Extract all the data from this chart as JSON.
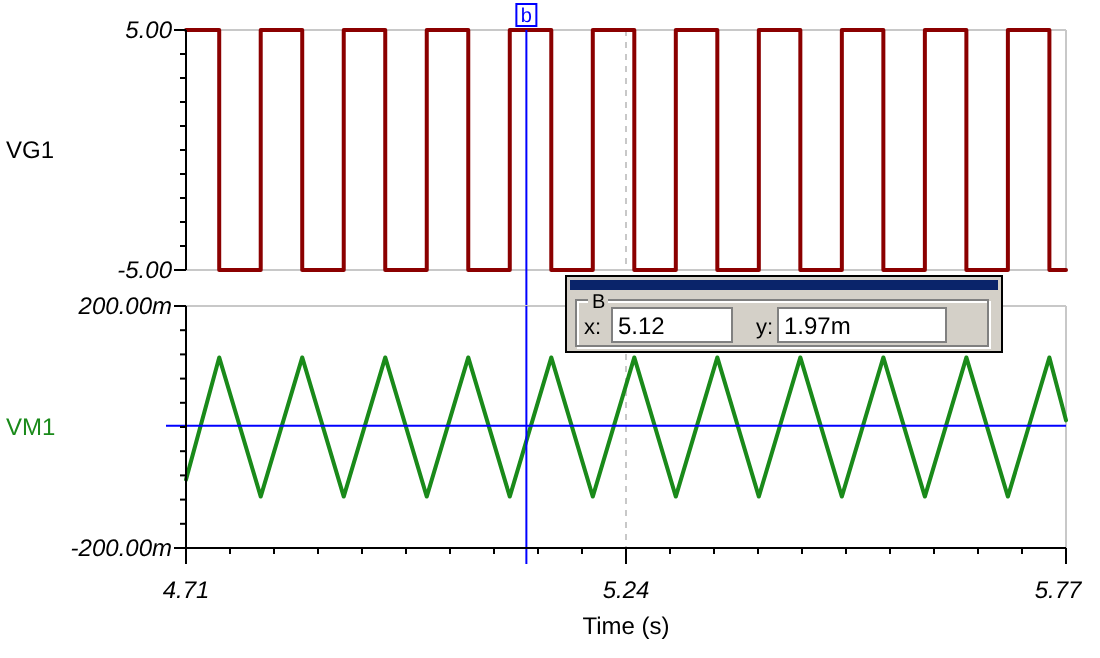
{
  "chart_data": [
    {
      "type": "line",
      "ylabel": "VG1",
      "xlim": [
        4.71,
        5.77
      ],
      "xticks": [
        4.71,
        5.24,
        5.77
      ],
      "ylim": [
        -5,
        5
      ],
      "yticks": [
        {
          "value": -5,
          "label": "-5.00"
        },
        {
          "value": 5,
          "label": "5.00"
        }
      ],
      "tick_labels": "y",
      "grid": true,
      "series": [
        {
          "color": "#8b0000",
          "x": [
            4.71,
            4.75,
            4.75,
            4.8,
            4.8,
            4.85,
            4.85,
            4.9,
            4.9,
            4.95,
            4.95,
            5.0,
            5.0,
            5.05,
            5.05,
            5.1,
            5.1,
            5.15,
            5.15,
            5.2,
            5.2,
            5.25,
            5.25,
            5.3,
            5.3,
            5.35,
            5.35,
            5.4,
            5.4,
            5.45,
            5.45,
            5.5,
            5.5,
            5.55,
            5.55,
            5.6,
            5.6,
            5.65,
            5.65,
            5.7,
            5.7,
            5.75,
            5.75,
            5.77
          ],
          "values": [
            5,
            5,
            -5,
            -5,
            5,
            5,
            -5,
            -5,
            5,
            5,
            -5,
            -5,
            5,
            5,
            -5,
            -5,
            5,
            5,
            -5,
            -5,
            5,
            5,
            -5,
            -5,
            5,
            5,
            -5,
            -5,
            5,
            5,
            -5,
            -5,
            5,
            5,
            -5,
            -5,
            5,
            5,
            -5,
            -5,
            5,
            5,
            -5,
            -5
          ]
        }
      ],
      "ref_lines": [
        {
          "axis": "x",
          "value": 5.12,
          "label": "b",
          "color": "#0000ff"
        }
      ]
    },
    {
      "type": "line",
      "xlabel": "Time (s)",
      "xlim": [
        4.71,
        5.77
      ],
      "xticks": [
        4.71,
        5.24,
        5.77
      ],
      "ylim": [
        -200,
        200
      ],
      "yticks": [
        {
          "value": -200,
          "label": "-200.00m"
        },
        {
          "value": 200,
          "label": "200.00m"
        }
      ],
      "grid": true,
      "series": [
        {
          "name": "VM1",
          "color": "#1a8a1a",
          "x": [
            4.71,
            4.75,
            4.8,
            4.85,
            4.9,
            4.95,
            5.0,
            5.05,
            5.1,
            5.15,
            5.2,
            5.25,
            5.3,
            5.35,
            5.4,
            5.45,
            5.5,
            5.55,
            5.6,
            5.65,
            5.7,
            5.75,
            5.77
          ],
          "values": [
            -87,
            115,
            -115,
            115,
            -115,
            115,
            -115,
            115,
            -115,
            115,
            -115,
            115,
            -115,
            115,
            -115,
            115,
            -115,
            115,
            -115,
            115,
            -115,
            115,
            11
          ]
        }
      ],
      "ref_lines": [
        {
          "axis": "x",
          "value": 5.12,
          "color": "#0000ff"
        },
        {
          "axis": "y",
          "value": 1.97,
          "color": "#0000ff"
        }
      ],
      "annotations": [
        "B",
        "x:",
        "5.12",
        "y:",
        "1.97m"
      ]
    }
  ]
}
